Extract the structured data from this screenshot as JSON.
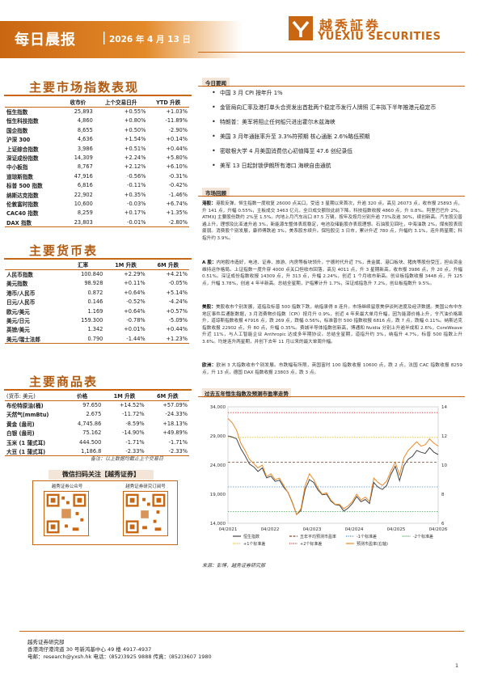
{
  "header": {
    "title": "每日晨报",
    "separator": "|",
    "date": "2026 年 4 月 13 日",
    "logo_cn": "越秀証券",
    "logo_en": "YUEXIU SECURITIES"
  },
  "indices": {
    "section_title": "主要市场指数表现",
    "columns": [
      "",
      "收市价",
      "上个交易日升",
      "YTD 升跌"
    ],
    "rows": [
      {
        "name": "恒生指数",
        "close": "25,893",
        "day": "+0.55%",
        "ytd": "+1.03%"
      },
      {
        "name": "恒生科技指数",
        "close": "4,860",
        "day": "+0.80%",
        "ytd": "-11.89%"
      },
      {
        "name": "国企指数",
        "close": "8,655",
        "day": "+0.50%",
        "ytd": "-2.90%"
      },
      {
        "name": "沪深 300",
        "close": "4,636",
        "day": "+1.54%",
        "ytd": "+0.14%"
      },
      {
        "name": "上证综合指数",
        "close": "3,986",
        "day": "+0.51%",
        "ytd": "+0.44%"
      },
      {
        "name": "深证成份指数",
        "close": "14,309",
        "day": "+2.24%",
        "ytd": "+5.80%"
      },
      {
        "name": "中小板指",
        "close": "8,767",
        "day": "+2.12%",
        "ytd": "+6.10%"
      },
      {
        "name": "道琼斯指数",
        "close": "47,916",
        "day": "-0.56%",
        "ytd": "-0.31%"
      },
      {
        "name": "标普 500 指数",
        "close": "6,816",
        "day": "-0.11%",
        "ytd": "-0.42%"
      },
      {
        "name": "纳斯达克指数",
        "close": "22,902",
        "day": "+0.35%",
        "ytd": "-1.46%"
      },
      {
        "name": "伦敦富时指数",
        "close": "10,600",
        "day": "-0.03%",
        "ytd": "+6.74%"
      },
      {
        "name": "CAC40 指数",
        "close": "8,259",
        "day": "+0.17%",
        "ytd": "+1.35%"
      },
      {
        "name": "DAX 指数",
        "close": "23,803",
        "day": "-0.01%",
        "ytd": "-2.80%"
      }
    ]
  },
  "fx": {
    "section_title": "主要货币表",
    "columns": [
      "",
      "汇率",
      "1M 升跌",
      "6M 升跌"
    ],
    "rows": [
      {
        "name": "人民币指数",
        "rate": "100.840",
        "m1": "+2.29%",
        "m6": "+4.21%"
      },
      {
        "name": "美元指数",
        "rate": "98.928",
        "m1": "+0.11%",
        "m6": "-0.05%"
      },
      {
        "name": "港币/人民币",
        "rate": "0.872",
        "m1": "+0.64%",
        "m6": "+5.14%"
      },
      {
        "name": "日元/人民币",
        "rate": "0.146",
        "m1": "-0.52%",
        "m6": "-4.24%"
      },
      {
        "name": "欧元/美元",
        "rate": "1.169",
        "m1": "+0.64%",
        "m6": "+0.57%"
      },
      {
        "name": "美元/日元",
        "rate": "159.300",
        "m1": "-0.78%",
        "m6": "-5.09%"
      },
      {
        "name": "英镑/美元",
        "rate": "1.342",
        "m1": "+0.01%",
        "m6": "+0.44%"
      },
      {
        "name": "美元/瑞士法郎",
        "rate": "0.790",
        "m1": "-1.44%",
        "m6": "+1.23%"
      }
    ]
  },
  "commodities": {
    "section_title": "主要商品表",
    "columns": [
      "(货币: 美元)",
      "价格",
      "1M 升跌",
      "6M 升跌"
    ],
    "rows": [
      {
        "name": "布伦特原油(桶)",
        "price": "97.650",
        "m1": "+14.52%",
        "m6": "+57.09%"
      },
      {
        "name": "天然气(mmBtu)",
        "price": "2.675",
        "m1": "-11.72%",
        "m6": "-24.33%"
      },
      {
        "name": "黄金 (盎司)",
        "price": "4,745.86",
        "m1": "-8.59%",
        "m6": "+18.13%"
      },
      {
        "name": "白银 (盎司)",
        "price": "75.162",
        "m1": "-14.90%",
        "m6": "+49.89%"
      },
      {
        "name": "玉米 (1 蒲式耳)",
        "price": "444.500",
        "m1": "-1.71%",
        "m6": "-1.71%"
      },
      {
        "name": "大豆 (1 蒲式耳)",
        "price": "1,186.8",
        "m1": "-2.33%",
        "m6": "-2.33%"
      }
    ],
    "note": "备注：以上数据均截止上个交易日"
  },
  "qr": {
    "header": "微信扫码关注【越秀证券】",
    "left_label": "越秀证券公众号",
    "right_label": "越秀证券研究订阅号"
  },
  "today": {
    "tag": "今日要闻",
    "items": [
      "中国 3 月 CPI 按年升 1%",
      "金管局向汇率及港打单头合资发出首批两个稳定币发行人牌照 汇丰拟下半年推港元稳定币",
      "特朗普：美军将阻止任何船只进出霍尔木兹海峡",
      "美国 3 月年通胀率升至 3.3%符预期 核心通胀 2.6%略低预期",
      "密歇根大学 4 月美国消费信心初值降至 47.6 创纪录低",
      "美军 13 日起封锁伊朗所有港口 海峡自由通航"
    ]
  },
  "review": {
    "tag": "市场回顾",
    "hk_label": "港股：",
    "hk": "港股反弹，恒生指数一度收复 26000 点关口，受追 3 星期以来首次，升逾 320 点。高见 26073 点，收市报 25893 点，升 141 点，升幅 0.55%，主板成交 3463 亿元，全日成交额较此前下降。科技指数收报 4860 点，升 0.8%。阿里巴巴升 2%，ATMXJ 主要股份跌约 2%至 1.5%。内地上月汽车出口 87.5 万辆，按年及按月分别升逾 73%及逾 30%，续创新高。汽车股见普遍上升，理想及比亚迪升逾 3%，新能源车整体表现稳定，电池及储能股亦表现理想。石油股见回吐，中海油跌 2%，煤炭股表现疲弱。消费股个别发展，康师傅跌逾 3%，美系股东续升。保险股见 3 日市，累计升近 780 点，升幅约 3.1%，连升两星期；科指升约 3.9%。",
    "a_label": "A 股：",
    "a": "内地股市造好，电池、证券、旅游、内房等板块领升，宁德时代升近 7%，贵金属、港口板块、猪肉等股份受压，担合资金维持运作格局。上证指数一度升穿 4000 点关口但收市回落，高见 4011 点，升 3 星期新高，收市报 3986 点，升 20 点，升幅 0.51%。深证成份指数收报 14309 点，升 313 点，升幅 2.24%，创近 1 个月收市新高。创业板指数收报 3448 点，升 125 点，升幅 3.78%，创逾 4 年半新高。总结全星期，沪指累计升 1.7%，深证成指急升 7.2%，创业板指数升 9.5%。",
    "us_label": "美股：",
    "us": "美股收市个别发展，道指及标普 500 指数下跌，纳指录得 8 连升。市场继续留意美伊谈判进度及经济数据。美国公布中东地区事件后通胀数据，3 月消费物价指数（CPI）按月升 0.9%，创近 4 年来最大单月升幅，因为能源价格上升，令汽油价格飙升，道琼斯指数收报 47916 点，跌 269 点，跌幅 0.56%，标准普尔 500 指数收报 6816 点，跌 7 点，跌幅 0.11%。纳斯达克指数收报 22902 点，升 80 点，升幅 0.35%。费城半导体指数创新高，博通和 Nvidia 分别上升逾半成和 2.6%，CoreWeave 升近 11%，与人工智能企业 Anthropic 达成多年期协议。总结全星期，道指升约 3%，纳指升 4.7%，标普 500 指数上升 3.6%。均是连升两星期，并创下去年 11 月以来的最大单周升幅。",
    "eu_label": "欧洲：",
    "eu": "欧洲 3 大指数收市个别发展。市跌幅有所限，英国富时 100 指数收报 10600 点，跌 2 点，法国 CAC 指数收报 8259 点，升 13 点，德国 DAX 指数收报 23803 点，跌 3 点。"
  },
  "chart_title": "过去五年恒生指数及预测市盈率走势",
  "chart_data": {
    "type": "line",
    "title": "过去五年恒生指数及预测市盈率走势",
    "x_ticks": [
      "04/2021",
      "04/2022",
      "04/2023",
      "04/2024",
      "04/2025",
      "04/2026"
    ],
    "y_left_ticks": [
      "14,000",
      "19,000",
      "24,000",
      "29,000",
      "34,000"
    ],
    "y_right_ticks": [
      "6",
      "8",
      "10",
      "12",
      "14"
    ],
    "ylim_left": [
      14000,
      34000
    ],
    "ylim_right": [
      6,
      14
    ],
    "series": [
      {
        "name": "恒生指数",
        "axis": "left",
        "color": "#444444",
        "values": [
          29000,
          28800,
          28500,
          26800,
          25600,
          24200,
          23700,
          22900,
          23500,
          21800,
          22100,
          21200,
          21400,
          20200,
          19300,
          17600,
          15500,
          16200,
          19800,
          21500,
          21000,
          19700,
          18900,
          19000,
          17800,
          17200,
          17100,
          16100,
          16600,
          17400,
          18600,
          17700,
          18100,
          17400,
          21000,
          20200,
          19800,
          20500,
          22400,
          23800,
          21300,
          23900,
          25000,
          25500,
          26500,
          26200,
          26000,
          27000,
          26200,
          25800
        ]
      },
      {
        "name": "五年平均预测市盈率",
        "axis": "right",
        "color": "#7a4a2a",
        "dashed": true,
        "values": [
          10.2,
          10.2,
          10.2,
          10.2,
          10.2,
          10.2,
          10.2,
          10.2,
          10.2,
          10.2,
          10.2,
          10.2,
          10.2,
          10.2,
          10.2,
          10.2,
          10.2,
          10.2,
          10.2,
          10.2,
          10.2,
          10.2,
          10.2,
          10.2,
          10.2,
          10.2,
          10.2,
          10.2,
          10.2,
          10.2,
          10.2,
          10.2,
          10.2,
          10.2,
          10.2,
          10.2,
          10.2,
          10.2,
          10.2,
          10.2,
          10.2,
          10.2,
          10.2,
          10.2,
          10.2,
          10.2,
          10.2,
          10.2,
          10.2,
          10.2
        ]
      },
      {
        "name": "预测市盈率 (右轴)",
        "axis": "right",
        "color": "#e98a2a",
        "values": [
          13.2,
          12.9,
          12.4,
          11.5,
          11.0,
          10.4,
          10.1,
          9.8,
          10.0,
          9.2,
          9.4,
          9.0,
          9.1,
          8.6,
          8.1,
          7.4,
          6.6,
          7.0,
          8.6,
          9.4,
          9.0,
          8.4,
          8.0,
          8.1,
          7.6,
          7.3,
          7.3,
          7.0,
          7.2,
          7.5,
          8.0,
          7.6,
          7.8,
          7.5,
          9.1,
          8.8,
          8.6,
          8.9,
          9.6,
          10.2,
          9.3,
          10.5,
          11.0,
          11.3,
          11.6,
          11.3,
          11.4,
          11.8,
          11.5,
          11.3
        ]
      }
    ],
    "legend": [
      {
        "label": "恒生指数",
        "color": "#444444",
        "style": "solid"
      },
      {
        "label": "五年平均预测市盈率",
        "color": "#7a4a2a",
        "style": "dash"
      },
      {
        "label": "-1个标准差",
        "color": "#4a8fd4",
        "style": "dot"
      },
      {
        "label": "-2个标准差",
        "color": "#3caa55",
        "style": "dot"
      },
      {
        "label": "+1个标准差",
        "color": "#e8c020",
        "style": "dot"
      },
      {
        "label": "+2个标准差",
        "color": "#d84040",
        "style": "dot"
      },
      {
        "label": "预测市盈率(右轴)",
        "color": "#e98a2a",
        "style": "solid"
      }
    ],
    "bands": [
      {
        "label": "+2个标准差",
        "value": 13.6,
        "color": "#d84040"
      },
      {
        "label": "+1个标准差",
        "value": 11.9,
        "color": "#e8c020"
      },
      {
        "label": "-1个标准差",
        "value": 8.5,
        "color": "#4a8fd4"
      },
      {
        "label": "-2个标准差",
        "value": 6.8,
        "color": "#3caa55"
      }
    ]
  },
  "chart_source": "来源：彭博，越秀证券研究部",
  "footer": {
    "line1": "越秀证券研究部",
    "line2": "香港湾仔港湾道 30 号新鸿基中心 49 楼 4917-4937",
    "line3": "电邮：research@yxsh.hk 电话：(852)3925 9888 传真：(852)3607 1980",
    "page": "1"
  },
  "colors": {
    "accent": "#c96612",
    "tag_bg": "#f3e6d8"
  }
}
